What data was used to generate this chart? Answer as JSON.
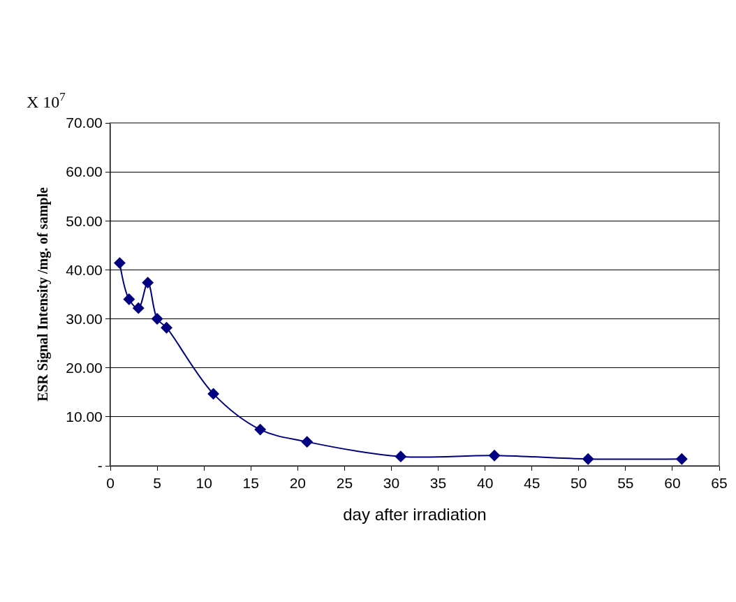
{
  "chart_data": {
    "type": "line",
    "xlabel": "day after irradiation",
    "ylabel": "ESR Signal Intensity /mg. of sample",
    "annotations": [
      "X 10$^{7}$"
    ],
    "x": [
      1,
      2,
      3,
      4,
      5,
      6,
      11,
      16,
      21,
      31,
      41,
      51,
      61
    ],
    "series": [
      {
        "color": "#000080",
        "values": [
          41.4,
          34.0,
          32.2,
          37.4,
          30.0,
          28.2,
          14.7,
          7.4,
          4.9,
          1.9,
          2.1,
          1.4,
          1.4
        ]
      }
    ],
    "xlim": [
      0,
      65
    ],
    "xticks": [
      0,
      5,
      10,
      15,
      20,
      25,
      30,
      35,
      40,
      45,
      50,
      55,
      60,
      65
    ],
    "ylim": [
      0,
      70
    ],
    "yticks": [
      {
        "value": 0,
        "label": "-"
      },
      {
        "value": 10,
        "label": "10.00"
      },
      {
        "value": 20,
        "label": "20.00"
      },
      {
        "value": 30,
        "label": "30.00"
      },
      {
        "value": 40,
        "label": "40.00"
      },
      {
        "value": 50,
        "label": "50.00"
      },
      {
        "value": 60,
        "label": "60.00"
      },
      {
        "value": 70,
        "label": "70.00"
      }
    ],
    "grid": "y",
    "marker": "diamond",
    "line_style": "solid",
    "legend": false
  }
}
